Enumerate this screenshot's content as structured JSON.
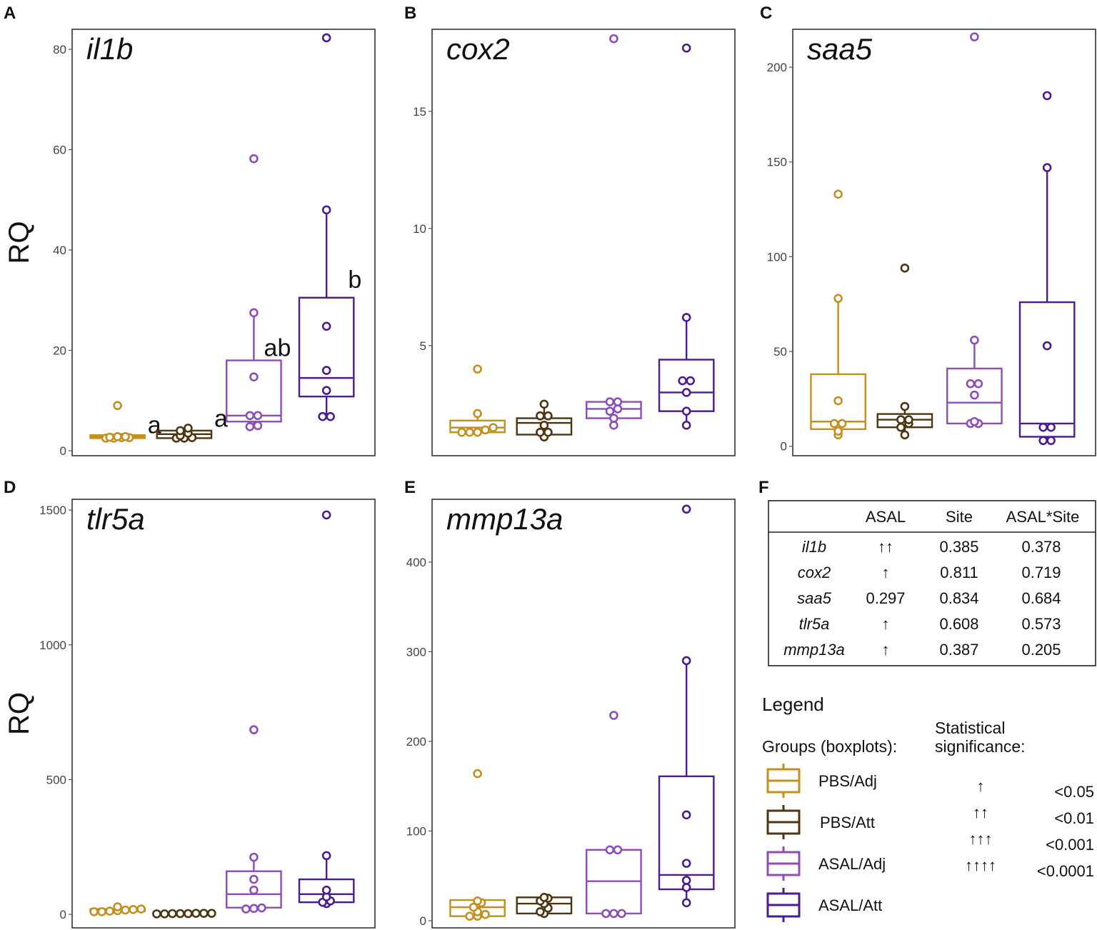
{
  "colors": {
    "PBS/Adj": "#C58F1E",
    "PBS/Att": "#4E3410",
    "ASAL/Adj": "#8E4CB8",
    "ASAL/Att": "#4B1C8F"
  },
  "chart_data": [
    {
      "panel": "A",
      "type": "box",
      "title": "il1b",
      "ylabel": "RQ",
      "ylim": [
        -1,
        84
      ],
      "yticks": [
        0,
        20,
        40,
        60,
        80
      ],
      "groups": [
        "PBS/Adj",
        "PBS/Att",
        "ASAL/Adj",
        "ASAL/Att"
      ],
      "boxes": [
        {
          "group": "PBS/Adj",
          "q1": 2.5,
          "median": 2.8,
          "q3": 3.1,
          "whisker_low": 2.5,
          "whisker_high": 3.2,
          "points": [
            2.5,
            2.5,
            2.6,
            2.6,
            2.7,
            2.8,
            2.8,
            9.0
          ],
          "letter": "a"
        },
        {
          "group": "PBS/Att",
          "q1": 2.5,
          "median": 3.3,
          "q3": 4.0,
          "whisker_low": 2.5,
          "whisker_high": 4.5,
          "points": [
            2.5,
            2.5,
            2.6,
            3.0,
            3.5,
            4.0,
            4.5
          ],
          "letter": "a"
        },
        {
          "group": "ASAL/Adj",
          "q1": 5.8,
          "median": 7.0,
          "q3": 18.0,
          "whisker_low": 4.8,
          "whisker_high": 27.5,
          "points": [
            4.8,
            5.0,
            7.0,
            7.0,
            14.7,
            27.5,
            58.2
          ],
          "letter": "ab"
        },
        {
          "group": "ASAL/Att",
          "q1": 10.8,
          "median": 14.5,
          "q3": 30.5,
          "whisker_low": 6.8,
          "whisker_high": 48.0,
          "points": [
            6.8,
            6.8,
            12.0,
            16.0,
            24.8,
            48.0,
            82.3
          ],
          "letter": "b"
        }
      ]
    },
    {
      "panel": "B",
      "type": "box",
      "title": "cox2",
      "ylabel": "",
      "ylim": [
        0.3,
        18.5
      ],
      "yticks": [
        5,
        10,
        15
      ],
      "groups": [
        "PBS/Adj",
        "PBS/Att",
        "ASAL/Adj",
        "ASAL/Att"
      ],
      "boxes": [
        {
          "group": "PBS/Adj",
          "q1": 1.3,
          "median": 1.5,
          "q3": 1.8,
          "whisker_low": 1.3,
          "whisker_high": 2.1,
          "points": [
            1.3,
            1.3,
            1.3,
            1.4,
            1.5,
            2.1,
            4.0
          ],
          "letter": ""
        },
        {
          "group": "PBS/Att",
          "q1": 1.2,
          "median": 1.7,
          "q3": 1.9,
          "whisker_low": 1.1,
          "whisker_high": 2.5,
          "points": [
            1.1,
            1.3,
            1.3,
            1.6,
            2.0,
            2.0,
            2.5
          ],
          "letter": ""
        },
        {
          "group": "ASAL/Adj",
          "q1": 1.9,
          "median": 2.3,
          "q3": 2.6,
          "whisker_low": 1.6,
          "whisker_high": 2.6,
          "points": [
            1.6,
            1.9,
            2.2,
            2.3,
            2.6,
            2.6,
            18.1
          ],
          "letter": ""
        },
        {
          "group": "ASAL/Att",
          "q1": 2.2,
          "median": 3.0,
          "q3": 4.4,
          "whisker_low": 1.6,
          "whisker_high": 6.2,
          "points": [
            1.6,
            2.2,
            3.0,
            3.5,
            3.5,
            6.2,
            17.7
          ],
          "letter": ""
        }
      ]
    },
    {
      "panel": "C",
      "type": "box",
      "title": "saa5",
      "ylabel": "",
      "ylim": [
        -5,
        220
      ],
      "yticks": [
        0,
        50,
        100,
        150,
        200
      ],
      "groups": [
        "PBS/Adj",
        "PBS/Att",
        "ASAL/Adj",
        "ASAL/Att"
      ],
      "boxes": [
        {
          "group": "PBS/Adj",
          "q1": 9,
          "median": 13,
          "q3": 38,
          "whisker_low": 6,
          "whisker_high": 78,
          "points": [
            6,
            8,
            12,
            12,
            24,
            78,
            133
          ],
          "letter": ""
        },
        {
          "group": "PBS/Att",
          "q1": 10,
          "median": 14,
          "q3": 17,
          "whisker_low": 6,
          "whisker_high": 21,
          "points": [
            6,
            10,
            12,
            14,
            14,
            21,
            94
          ],
          "letter": ""
        },
        {
          "group": "ASAL/Adj",
          "q1": 12,
          "median": 23,
          "q3": 41,
          "whisker_low": 12,
          "whisker_high": 56,
          "points": [
            12,
            12,
            13,
            27,
            33,
            33,
            56,
            216
          ],
          "letter": ""
        },
        {
          "group": "ASAL/Att",
          "q1": 5,
          "median": 12,
          "q3": 76,
          "whisker_low": 3,
          "whisker_high": 147,
          "points": [
            3,
            3,
            10,
            10,
            53,
            147,
            185
          ],
          "letter": ""
        }
      ]
    },
    {
      "panel": "D",
      "type": "box",
      "title": "tlr5a",
      "ylabel": "RQ",
      "ylim": [
        -50,
        1540
      ],
      "yticks": [
        0,
        500,
        1000,
        1500
      ],
      "groups": [
        "PBS/Adj",
        "PBS/Att",
        "ASAL/Adj",
        "ASAL/Att"
      ],
      "boxes": [
        {
          "group": "PBS/Adj",
          "q1": 12,
          "median": 15,
          "q3": 20,
          "whisker_low": 10,
          "whisker_high": 28,
          "points": [
            10,
            10,
            12,
            14,
            16,
            18,
            20,
            28
          ],
          "letter": ""
        },
        {
          "group": "PBS/Att",
          "q1": 2,
          "median": 3,
          "q3": 4,
          "whisker_low": 2,
          "whisker_high": 4,
          "points": [
            2,
            2,
            3,
            3,
            3,
            4,
            4,
            4
          ],
          "letter": ""
        },
        {
          "group": "ASAL/Adj",
          "q1": 25,
          "median": 75,
          "q3": 160,
          "whisker_low": 20,
          "whisker_high": 212,
          "points": [
            20,
            22,
            24,
            90,
            130,
            212,
            685
          ],
          "letter": ""
        },
        {
          "group": "ASAL/Att",
          "q1": 45,
          "median": 75,
          "q3": 130,
          "whisker_low": 40,
          "whisker_high": 218,
          "points": [
            40,
            45,
            50,
            65,
            90,
            218,
            1482
          ],
          "letter": ""
        }
      ]
    },
    {
      "panel": "E",
      "type": "box",
      "title": "mmp13a",
      "ylabel": "",
      "ylim": [
        -8,
        470
      ],
      "yticks": [
        0,
        100,
        200,
        300,
        400
      ],
      "groups": [
        "PBS/Adj",
        "PBS/Att",
        "ASAL/Adj",
        "ASAL/Att"
      ],
      "boxes": [
        {
          "group": "PBS/Adj",
          "q1": 5,
          "median": 15,
          "q3": 23,
          "whisker_low": 5,
          "whisker_high": 23,
          "points": [
            5,
            5,
            7,
            10,
            15,
            20,
            22,
            164
          ],
          "letter": ""
        },
        {
          "group": "PBS/Att",
          "q1": 8,
          "median": 19,
          "q3": 26,
          "whisker_low": 8,
          "whisker_high": 26,
          "points": [
            8,
            10,
            14,
            19,
            22,
            25,
            26
          ],
          "letter": ""
        },
        {
          "group": "ASAL/Adj",
          "q1": 8,
          "median": 44,
          "q3": 79,
          "whisker_low": 8,
          "whisker_high": 79,
          "points": [
            8,
            8,
            8,
            79,
            79,
            229
          ],
          "letter": ""
        },
        {
          "group": "ASAL/Att",
          "q1": 35,
          "median": 51,
          "q3": 161,
          "whisker_low": 20,
          "whisker_high": 290,
          "points": [
            20,
            37,
            45,
            64,
            118,
            290,
            459
          ],
          "letter": ""
        }
      ]
    }
  ],
  "panel_f": {
    "letter": "F",
    "table": {
      "headers": [
        "",
        "ASAL",
        "Site",
        "ASAL*Site"
      ],
      "rows": [
        {
          "gene": "il1b",
          "asal": "↑↑",
          "site": "0.385",
          "interaction": "0.378"
        },
        {
          "gene": "cox2",
          "asal": "↑",
          "site": "0.811",
          "interaction": "0.719"
        },
        {
          "gene": "saa5",
          "asal": "0.297",
          "site": "0.834",
          "interaction": "0.684"
        },
        {
          "gene": "tlr5a",
          "asal": "↑",
          "site": "0.608",
          "interaction": "0.573"
        },
        {
          "gene": "mmp13a",
          "asal": "↑",
          "site": "0.387",
          "interaction": "0.205"
        }
      ]
    },
    "legend": {
      "title": "Legend",
      "groups_header": "Groups (boxplots):",
      "significance_header_line1": "Statistical",
      "significance_header_line2": "significance:",
      "groups": [
        "PBS/Adj",
        "PBS/Att",
        "ASAL/Adj",
        "ASAL/Att"
      ],
      "significance": [
        {
          "arrows": "↑",
          "p": "<0.05"
        },
        {
          "arrows": "↑↑",
          "p": "<0.01"
        },
        {
          "arrows": "↑↑↑",
          "p": "<0.001"
        },
        {
          "arrows": "↑↑↑↑",
          "p": "<0.0001"
        }
      ]
    }
  }
}
